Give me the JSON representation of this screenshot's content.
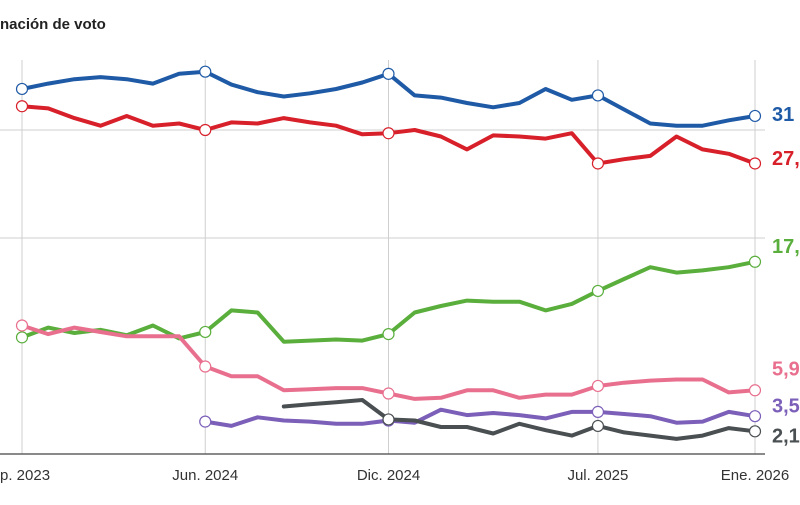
{
  "chart_data": {
    "type": "line",
    "title": "nación de voto",
    "categories": [
      "p. 2023",
      null,
      null,
      null,
      null,
      null,
      null,
      "Jun. 2024",
      null,
      null,
      null,
      null,
      null,
      null,
      "Dic. 2024",
      null,
      null,
      null,
      null,
      null,
      null,
      null,
      "Jul. 2025",
      null,
      null,
      null,
      null,
      null,
      "Ene. 2026"
    ],
    "ylim": [
      0,
      40
    ],
    "y_gridlines": [
      20,
      30
    ],
    "grid": true,
    "series": [
      {
        "color": "#1f5aa6",
        "end_label": "31",
        "values": [
          33.8,
          34.3,
          34.7,
          34.9,
          34.7,
          34.3,
          35.2,
          35.4,
          34.2,
          33.5,
          33.1,
          33.4,
          33.8,
          34.4,
          35.2,
          33.2,
          33.0,
          32.5,
          32.1,
          32.5,
          33.8,
          32.8,
          33.2,
          31.9,
          30.6,
          30.4,
          30.4,
          30.9,
          31.3
        ]
      },
      {
        "color": "#d8202a",
        "end_label": "27,",
        "values": [
          32.2,
          32.0,
          31.1,
          30.4,
          31.3,
          30.4,
          30.6,
          30.0,
          30.7,
          30.6,
          31.1,
          30.7,
          30.4,
          29.6,
          29.7,
          30.0,
          29.4,
          28.2,
          29.5,
          29.4,
          29.2,
          29.7,
          26.9,
          27.3,
          27.6,
          29.4,
          28.2,
          27.8,
          26.9
        ]
      },
      {
        "color": "#5aae3c",
        "end_label": "17,",
        "values": [
          10.8,
          11.7,
          11.2,
          11.5,
          11.0,
          11.9,
          10.7,
          11.3,
          13.3,
          13.1,
          10.4,
          10.5,
          10.6,
          10.5,
          11.1,
          13.1,
          13.7,
          14.2,
          14.1,
          14.1,
          13.3,
          13.9,
          15.1,
          16.2,
          17.3,
          16.8,
          17.0,
          17.3,
          17.8
        ]
      },
      {
        "color": "#e8708e",
        "end_label": "5,9",
        "values": [
          11.9,
          11.1,
          11.7,
          11.3,
          10.9,
          10.9,
          10.9,
          8.1,
          7.2,
          7.2,
          5.9,
          6.0,
          6.1,
          6.1,
          5.6,
          5.1,
          5.2,
          5.9,
          5.9,
          5.2,
          5.5,
          5.5,
          6.3,
          6.6,
          6.8,
          6.9,
          6.9,
          5.7,
          5.9
        ]
      },
      {
        "color": "#7b5fb8",
        "end_label": "3,5",
        "values": [
          null,
          null,
          null,
          null,
          null,
          null,
          null,
          3.0,
          2.6,
          3.4,
          3.1,
          3.0,
          2.8,
          2.8,
          3.1,
          2.9,
          4.1,
          3.6,
          3.8,
          3.6,
          3.3,
          3.9,
          3.9,
          3.7,
          3.5,
          2.9,
          3.0,
          3.9,
          3.5
        ]
      },
      {
        "color": "#4a4f52",
        "end_label": "2,1",
        "values": [
          null,
          null,
          null,
          null,
          null,
          null,
          null,
          null,
          null,
          null,
          4.4,
          4.6,
          4.8,
          5.0,
          3.2,
          3.1,
          2.5,
          2.5,
          1.9,
          2.8,
          2.2,
          1.7,
          2.6,
          2.0,
          1.7,
          1.4,
          1.7,
          2.4,
          2.1
        ]
      }
    ]
  }
}
